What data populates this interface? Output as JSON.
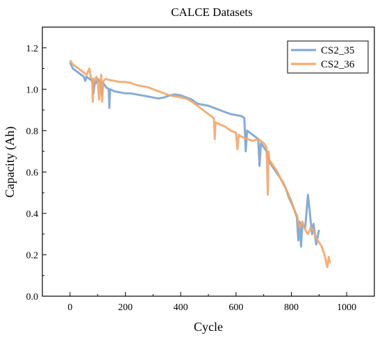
{
  "chart_data": {
    "type": "line",
    "title": "CALCE Datasets",
    "xlabel": "Cycle",
    "ylabel": "Capacity (Ah)",
    "xlim": [
      -100,
      1100
    ],
    "ylim": [
      0.0,
      1.3
    ],
    "xticks": [
      "0",
      "200",
      "400",
      "600",
      "800",
      "1000"
    ],
    "xtick_values": [
      0,
      200,
      400,
      600,
      800,
      1000
    ],
    "yticks": [
      "0.0",
      "0.2",
      "0.4",
      "0.6",
      "0.8",
      "1.0",
      "1.2"
    ],
    "ytick_values": [
      0.0,
      0.2,
      0.4,
      0.6,
      0.8,
      1.0,
      1.2
    ],
    "grid": false,
    "legend_position": "top-right",
    "series": [
      {
        "name": "CS2_35",
        "color": "#7fa6d3",
        "x": [
          0,
          10,
          20,
          30,
          40,
          50,
          55,
          60,
          70,
          80,
          85,
          90,
          95,
          100,
          110,
          115,
          120,
          130,
          140,
          142,
          145,
          160,
          180,
          200,
          220,
          240,
          260,
          280,
          300,
          320,
          340,
          360,
          380,
          400,
          420,
          440,
          460,
          480,
          500,
          520,
          540,
          560,
          580,
          600,
          620,
          630,
          635,
          640,
          650,
          660,
          670,
          680,
          685,
          690,
          700,
          710,
          720,
          730,
          740,
          750,
          760,
          770,
          780,
          790,
          800,
          810,
          820,
          825,
          830,
          835,
          840,
          850,
          860,
          870,
          875,
          880,
          890,
          900
        ],
        "y": [
          1.13,
          1.1,
          1.09,
          1.08,
          1.07,
          1.06,
          1.04,
          1.06,
          1.05,
          1.04,
          0.98,
          1.04,
          1.03,
          1.05,
          1.03,
          0.97,
          1.03,
          1.01,
          1.0,
          0.91,
          1.0,
          0.99,
          0.985,
          0.98,
          0.98,
          0.975,
          0.97,
          0.965,
          0.96,
          0.955,
          0.96,
          0.97,
          0.975,
          0.97,
          0.96,
          0.95,
          0.93,
          0.925,
          0.92,
          0.91,
          0.9,
          0.89,
          0.88,
          0.875,
          0.87,
          0.86,
          0.7,
          0.8,
          0.79,
          0.78,
          0.77,
          0.76,
          0.63,
          0.74,
          0.72,
          0.7,
          0.65,
          0.63,
          0.61,
          0.59,
          0.57,
          0.55,
          0.52,
          0.48,
          0.45,
          0.42,
          0.38,
          0.27,
          0.36,
          0.24,
          0.35,
          0.33,
          0.49,
          0.36,
          0.3,
          0.35,
          0.25,
          0.32
        ]
      },
      {
        "name": "CS2_36",
        "color": "#f3a66a",
        "x": [
          0,
          10,
          20,
          30,
          40,
          50,
          60,
          70,
          75,
          80,
          82,
          85,
          90,
          95,
          100,
          105,
          110,
          113,
          116,
          120,
          130,
          140,
          160,
          180,
          200,
          220,
          240,
          260,
          280,
          300,
          320,
          340,
          360,
          380,
          400,
          420,
          440,
          460,
          480,
          500,
          520,
          523,
          526,
          540,
          560,
          580,
          600,
          605,
          610,
          620,
          640,
          660,
          680,
          700,
          710,
          715,
          718,
          720,
          730,
          740,
          750,
          760,
          780,
          800,
          810,
          820,
          825,
          830,
          840,
          850,
          860,
          870,
          880,
          890,
          900,
          910,
          920,
          925,
          930,
          935,
          940
        ],
        "y": [
          1.14,
          1.12,
          1.11,
          1.1,
          1.09,
          1.08,
          1.07,
          1.1,
          1.06,
          1.05,
          0.94,
          1.05,
          1.04,
          1.06,
          1.04,
          0.95,
          1.04,
          1.07,
          0.94,
          1.04,
          1.05,
          1.045,
          1.04,
          1.035,
          1.035,
          1.03,
          1.02,
          1.015,
          1.01,
          1.0,
          0.99,
          0.98,
          0.97,
          0.965,
          0.96,
          0.955,
          0.94,
          0.92,
          0.9,
          0.88,
          0.86,
          0.76,
          0.84,
          0.83,
          0.82,
          0.8,
          0.79,
          0.71,
          0.78,
          0.77,
          0.76,
          0.75,
          0.76,
          0.74,
          0.72,
          0.49,
          0.7,
          0.66,
          0.64,
          0.62,
          0.6,
          0.57,
          0.52,
          0.46,
          0.42,
          0.39,
          0.36,
          0.33,
          0.36,
          0.32,
          0.3,
          0.33,
          0.32,
          0.28,
          0.26,
          0.24,
          0.2,
          0.17,
          0.14,
          0.19,
          0.16
        ]
      }
    ]
  }
}
